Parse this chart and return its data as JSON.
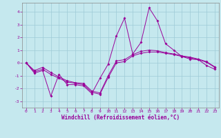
{
  "x": [
    0,
    1,
    2,
    3,
    4,
    5,
    6,
    7,
    8,
    9,
    10,
    11,
    12,
    13,
    14,
    15,
    16,
    17,
    18,
    19,
    20,
    21,
    22,
    23
  ],
  "line1": [
    0.0,
    -0.8,
    -0.6,
    -2.6,
    -0.9,
    -1.7,
    -1.7,
    -1.8,
    -2.4,
    -1.2,
    -0.1,
    2.1,
    3.5,
    0.7,
    1.6,
    4.3,
    3.3,
    1.5,
    1.0,
    0.5,
    0.3,
    0.25,
    -0.2,
    -0.5
  ],
  "line2": [
    0.0,
    -0.7,
    -0.5,
    -0.9,
    -1.2,
    -1.5,
    -1.6,
    -1.7,
    -2.3,
    -2.45,
    -1.15,
    0.0,
    0.1,
    0.55,
    0.75,
    0.85,
    0.85,
    0.75,
    0.65,
    0.5,
    0.4,
    0.25,
    0.05,
    -0.35
  ],
  "line3": [
    0.0,
    -0.6,
    -0.35,
    -0.75,
    -1.1,
    -1.4,
    -1.55,
    -1.6,
    -2.2,
    -2.35,
    -1.0,
    0.15,
    0.25,
    0.65,
    0.9,
    1.0,
    0.95,
    0.8,
    0.7,
    0.55,
    0.45,
    0.3,
    0.1,
    -0.3
  ],
  "background_color": "#c5e8ee",
  "grid_color": "#9ecad6",
  "line_color": "#990099",
  "spine_color": "#888888",
  "xlabel": "Windchill (Refroidissement éolien,°C)",
  "xlim": [
    -0.5,
    23.5
  ],
  "ylim": [
    -3.5,
    4.7
  ],
  "yticks": [
    -3,
    -2,
    -1,
    0,
    1,
    2,
    3,
    4
  ],
  "xticks": [
    0,
    1,
    2,
    3,
    4,
    5,
    6,
    7,
    8,
    9,
    10,
    11,
    12,
    13,
    14,
    15,
    16,
    17,
    18,
    19,
    20,
    21,
    22,
    23
  ],
  "tick_fontsize": 4.5,
  "xlabel_fontsize": 5.5
}
